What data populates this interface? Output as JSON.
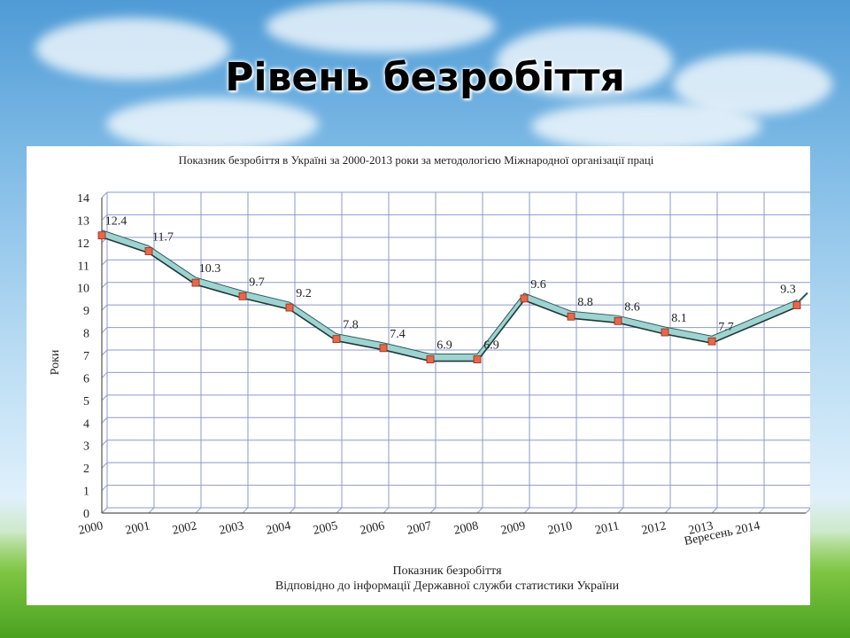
{
  "slide": {
    "title": "Рівень безробіття"
  },
  "chart_data": {
    "type": "line",
    "title": "Показник безробіття в Україні за 2000-2013 роки за методологією Міжнародної організації праці",
    "ylabel": "Роки",
    "xlabel": "Показник безробіття",
    "source": "Відповідно до інформації Державної служби статистики України",
    "ylim": [
      0,
      14
    ],
    "yticks": [
      0,
      1,
      2,
      3,
      4,
      5,
      6,
      7,
      8,
      9,
      10,
      11,
      12,
      13,
      14
    ],
    "grid": true,
    "categories": [
      "2000",
      "2001",
      "2002",
      "2003",
      "2004",
      "2005",
      "2006",
      "2007",
      "2008",
      "2009",
      "2010",
      "2011",
      "2012",
      "2013",
      "Вересень 2014"
    ],
    "series": [
      {
        "values": [
          12.4,
          11.7,
          10.3,
          9.7,
          9.2,
          7.8,
          7.4,
          6.9,
          6.9,
          9.6,
          8.8,
          8.6,
          8.1,
          7.7,
          9.3
        ],
        "labels": [
          "12.4",
          "11.7",
          "10.3",
          "9.7",
          "9.2",
          "7.8",
          "7.4",
          "6.9",
          "6.9",
          "9.6",
          "8.8",
          "8.6",
          "8.1",
          "7.7",
          "9.3"
        ]
      }
    ],
    "colors": {
      "band": "#9fd3d1",
      "marker": "#e8674a",
      "grid": "#8f98c8"
    }
  }
}
